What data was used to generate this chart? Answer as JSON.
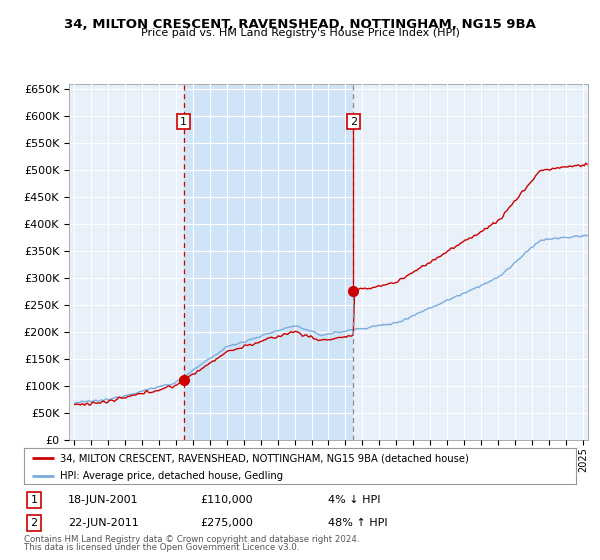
{
  "title": "34, MILTON CRESCENT, RAVENSHEAD, NOTTINGHAM, NG15 9BA",
  "subtitle": "Price paid vs. HM Land Registry's House Price Index (HPI)",
  "legend_line1": "34, MILTON CRESCENT, RAVENSHEAD, NOTTINGHAM, NG15 9BA (detached house)",
  "legend_line2": "HPI: Average price, detached house, Gedling",
  "footnote1": "Contains HM Land Registry data © Crown copyright and database right 2024.",
  "footnote2": "This data is licensed under the Open Government Licence v3.0.",
  "transaction1_date": "18-JUN-2001",
  "transaction1_price": 110000,
  "transaction1_label": "4% ↓ HPI",
  "transaction2_date": "22-JUN-2011",
  "transaction2_price": 275000,
  "transaction2_label": "48% ↑ HPI",
  "transaction1_x": 2001.46,
  "transaction2_x": 2011.47,
  "ylim": [
    0,
    660000
  ],
  "xlim": [
    1994.7,
    2025.3
  ],
  "plot_bg_color": "#e8f0fa",
  "shaded_bg_color": "#d0e4f7",
  "fig_bg_color": "#ffffff",
  "red_color": "#cc0000",
  "blue_color": "#7aaddd",
  "grid_color": "#c8d8e8",
  "outer_bg": "#e0e8f0"
}
